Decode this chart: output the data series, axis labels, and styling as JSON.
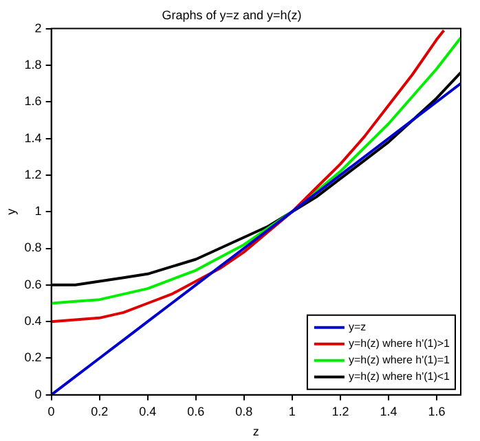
{
  "chart_data": {
    "type": "line",
    "title": "Graphs of y=z and y=h(z)",
    "xlabel": "z",
    "ylabel": "y",
    "x": [
      0,
      0.1,
      0.2,
      0.3,
      0.4,
      0.5,
      0.6,
      0.7,
      0.8,
      0.9,
      1,
      1.1,
      1.2,
      1.3,
      1.4,
      1.5,
      1.6,
      1.7
    ],
    "series": [
      {
        "name": "y=z",
        "color": "#0000cc",
        "values": [
          0,
          0.1,
          0.2,
          0.3,
          0.4,
          0.5,
          0.6,
          0.7,
          0.8,
          0.9,
          1,
          1.1,
          1.2,
          1.3,
          1.4,
          1.5,
          1.6,
          1.7
        ]
      },
      {
        "name": "y=h(z) where h'(1)>1",
        "color": "#dd0000",
        "x": [
          0,
          0.1,
          0.2,
          0.3,
          0.4,
          0.5,
          0.6,
          0.7,
          0.8,
          0.9,
          1,
          1.1,
          1.2,
          1.3,
          1.4,
          1.5,
          1.6,
          1.63
        ],
        "values": [
          0.4,
          0.41,
          0.42,
          0.45,
          0.5,
          0.55,
          0.62,
          0.69,
          0.78,
          0.89,
          1,
          1.13,
          1.26,
          1.41,
          1.58,
          1.75,
          1.94,
          1.99
        ]
      },
      {
        "name": "y=h(z) where h'(1)=1",
        "color": "#00ee00",
        "values": [
          0.5,
          0.51,
          0.52,
          0.55,
          0.58,
          0.63,
          0.68,
          0.75,
          0.82,
          0.91,
          1,
          1.11,
          1.22,
          1.35,
          1.48,
          1.63,
          1.78,
          1.95
        ]
      },
      {
        "name": "y=h(z) where h'(1)<1",
        "color": "#000000",
        "values": [
          0.6,
          0.6,
          0.62,
          0.64,
          0.66,
          0.7,
          0.74,
          0.8,
          0.86,
          0.92,
          1,
          1.08,
          1.18,
          1.28,
          1.38,
          1.5,
          1.62,
          1.76
        ]
      }
    ],
    "xlim": [
      0,
      1.7
    ],
    "xticks": [
      0,
      0.2,
      0.4,
      0.6,
      0.8,
      1,
      1.2,
      1.4,
      1.6
    ],
    "ylim": [
      0,
      2
    ],
    "yticks": [
      0,
      0.2,
      0.4,
      0.6,
      0.8,
      1,
      1.2,
      1.4,
      1.6,
      1.8,
      2
    ],
    "grid": false,
    "legend": "bottom right",
    "marker": "none",
    "line_style": "solid"
  }
}
